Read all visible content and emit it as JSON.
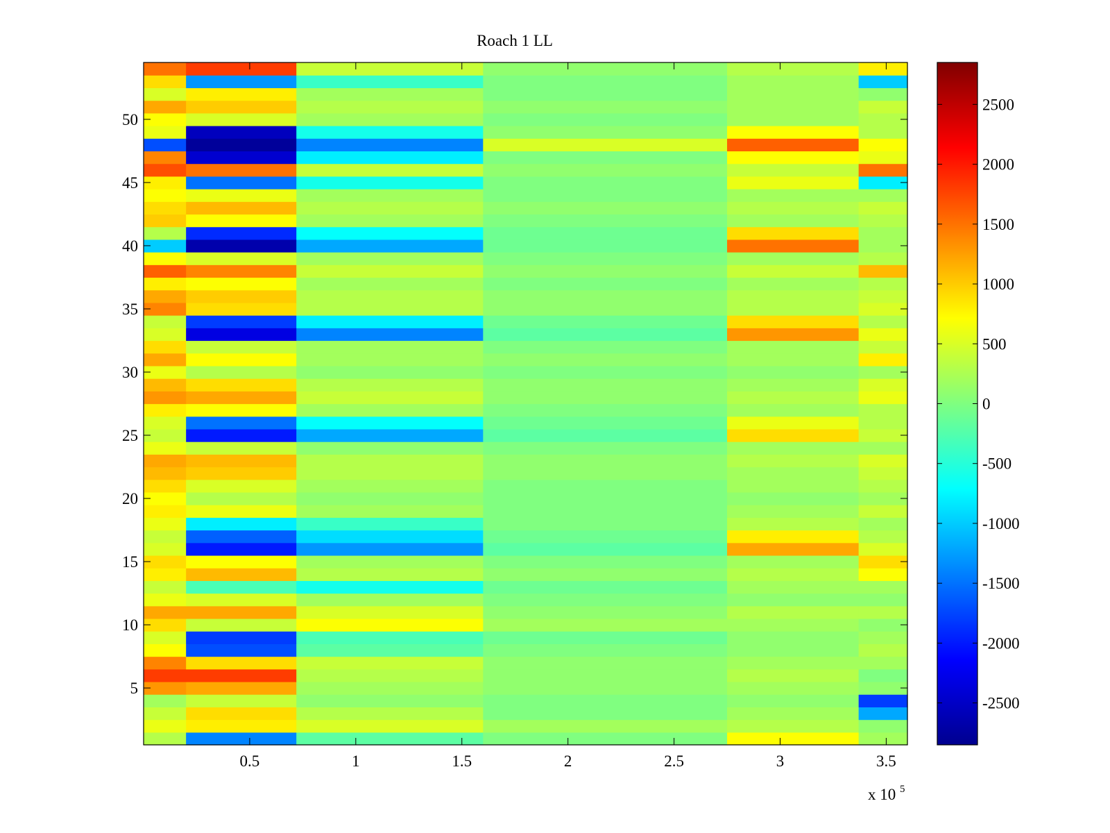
{
  "chart_data": {
    "type": "heatmap",
    "title": "Roach 1 LL",
    "xlabel": "",
    "ylabel": "",
    "x_multiplier_label": "x 10",
    "x_multiplier_exponent": "5",
    "xlim": [
      0,
      3.6
    ],
    "ylim": [
      0.5,
      54.5
    ],
    "x_ticks": [
      0.5,
      1,
      1.5,
      2,
      2.5,
      3,
      3.5
    ],
    "x_tick_labels": [
      "0.5",
      "1",
      "1.5",
      "2",
      "2.5",
      "3",
      "3.5"
    ],
    "y_ticks": [
      5,
      10,
      15,
      20,
      25,
      30,
      35,
      40,
      45,
      50
    ],
    "y_tick_labels": [
      "5",
      "10",
      "15",
      "20",
      "25",
      "30",
      "35",
      "40",
      "45",
      "50"
    ],
    "rows": 54,
    "colormap": "jet",
    "clim": [
      -2850,
      2850
    ],
    "colorbar": {
      "ticks": [
        2500,
        2000,
        1500,
        1000,
        500,
        0,
        -500,
        -1000,
        -1500,
        -2000,
        -2500
      ],
      "tick_labels": [
        "2500",
        "2000",
        "1500",
        "1000",
        "500",
        "0",
        "-500",
        "-1000",
        "-1500",
        "-2000",
        "-2500"
      ]
    },
    "x_segments": [
      0,
      0.2,
      0.72,
      1.6,
      2.75,
      3.37,
      3.6
    ],
    "row_values": [
      [
        300,
        -1400,
        -200,
        0,
        700,
        200
      ],
      [
        600,
        800,
        500,
        200,
        300,
        100
      ],
      [
        400,
        900,
        300,
        0,
        200,
        -1200
      ],
      [
        200,
        400,
        100,
        0,
        100,
        -1800
      ],
      [
        1300,
        1200,
        200,
        100,
        200,
        100
      ],
      [
        1800,
        1800,
        300,
        100,
        300,
        0
      ],
      [
        1400,
        900,
        400,
        100,
        200,
        200
      ],
      [
        700,
        -1700,
        -200,
        0,
        100,
        300
      ],
      [
        500,
        -1800,
        -300,
        -100,
        100,
        200
      ],
      [
        900,
        400,
        700,
        200,
        200,
        100
      ],
      [
        1200,
        1200,
        500,
        100,
        300,
        300
      ],
      [
        600,
        500,
        200,
        0,
        100,
        100
      ],
      [
        400,
        -300,
        -600,
        -100,
        200,
        200
      ],
      [
        800,
        1100,
        300,
        100,
        300,
        700
      ],
      [
        900,
        700,
        200,
        0,
        200,
        900
      ],
      [
        500,
        -2000,
        -1300,
        -200,
        1200,
        500
      ],
      [
        400,
        -1600,
        -900,
        -100,
        800,
        300
      ],
      [
        600,
        -800,
        -400,
        0,
        300,
        200
      ],
      [
        800,
        600,
        200,
        0,
        200,
        400
      ],
      [
        700,
        300,
        100,
        0,
        100,
        200
      ],
      [
        900,
        500,
        200,
        0,
        200,
        300
      ],
      [
        1100,
        1000,
        300,
        100,
        200,
        400
      ],
      [
        1200,
        1100,
        300,
        100,
        300,
        500
      ],
      [
        600,
        400,
        100,
        0,
        200,
        200
      ],
      [
        400,
        -2000,
        -1200,
        -200,
        900,
        400
      ],
      [
        500,
        -1500,
        -700,
        -100,
        600,
        300
      ],
      [
        800,
        700,
        200,
        0,
        200,
        300
      ],
      [
        1300,
        1200,
        400,
        100,
        300,
        600
      ],
      [
        1100,
        900,
        300,
        100,
        200,
        500
      ],
      [
        600,
        300,
        100,
        0,
        100,
        200
      ],
      [
        1200,
        700,
        200,
        100,
        200,
        800
      ],
      [
        900,
        400,
        200,
        0,
        200,
        400
      ],
      [
        500,
        -2300,
        -1400,
        -200,
        1300,
        600
      ],
      [
        400,
        -1800,
        -800,
        -100,
        900,
        300
      ],
      [
        1400,
        900,
        300,
        100,
        300,
        500
      ],
      [
        1200,
        1000,
        300,
        100,
        300,
        400
      ],
      [
        800,
        700,
        200,
        0,
        200,
        300
      ],
      [
        1600,
        1400,
        400,
        100,
        400,
        1100
      ],
      [
        700,
        500,
        200,
        0,
        200,
        300
      ],
      [
        -1000,
        -2600,
        -1200,
        -100,
        1500,
        200
      ],
      [
        300,
        -1900,
        -700,
        -100,
        900,
        200
      ],
      [
        1000,
        700,
        200,
        0,
        200,
        300
      ],
      [
        900,
        1100,
        300,
        100,
        300,
        400
      ],
      [
        700,
        600,
        200,
        0,
        200,
        200
      ],
      [
        800,
        -1500,
        -600,
        0,
        600,
        -800
      ],
      [
        1700,
        1500,
        400,
        100,
        400,
        1500
      ],
      [
        1400,
        -2400,
        -800,
        0,
        700,
        600
      ],
      [
        -1700,
        -2700,
        -1400,
        500,
        1600,
        700
      ],
      [
        600,
        -2500,
        -600,
        100,
        700,
        300
      ],
      [
        700,
        500,
        200,
        0,
        200,
        300
      ],
      [
        1200,
        1000,
        300,
        100,
        200,
        400
      ],
      [
        500,
        800,
        200,
        0,
        200,
        100
      ],
      [
        900,
        -1300,
        -400,
        0,
        200,
        -1000
      ],
      [
        1500,
        1800,
        400,
        100,
        300,
        800
      ]
    ]
  }
}
